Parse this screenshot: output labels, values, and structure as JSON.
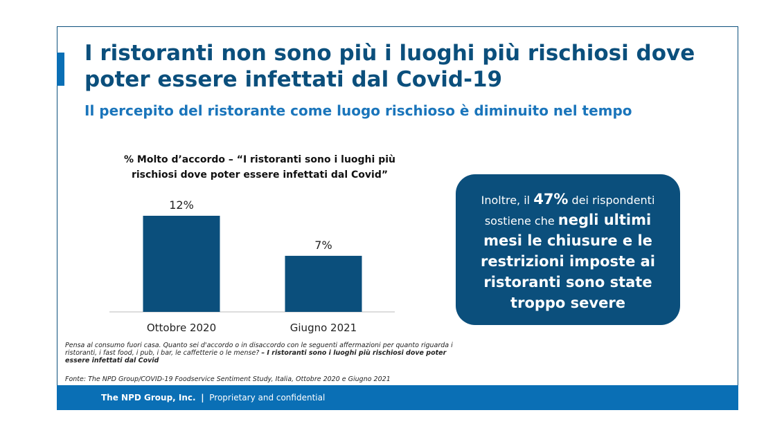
{
  "title": "I ristoranti non sono più i luoghi più rischiosi dove poter essere infettati dal Covid-19",
  "subtitle": "Il percepito del ristorante come luogo rischioso è diminuito nel tempo",
  "chart_data": {
    "type": "bar",
    "title": "% Molto d’accordo – “I ristoranti sono i luoghi più rischiosi dove poter essere infettati dal Covid”",
    "categories": [
      "Ottobre 2020",
      "Giugno 2021"
    ],
    "values": [
      12,
      7
    ],
    "labels": [
      "12%",
      "7%"
    ],
    "ylim": [
      0,
      12
    ],
    "color": "#0b4f7c"
  },
  "callout": {
    "p1": "Inoltre, il ",
    "pct": "47%",
    "p2": " dei rispondenti sostiene che ",
    "bold": "negli ultimi mesi le chiusure e le restrizioni imposte ai ristoranti sono state troppo severe"
  },
  "note": {
    "question": "Pensa al consumo fuori casa. Quanto sei d'accordo o in disaccordo con le seguenti affermazioni per quanto riguarda i ristoranti, i fast food, i pub, i bar, le caffetterie o le mense? ",
    "statement": "– I ristoranti sono i luoghi più rischiosi dove poter essere infettati dal Covid"
  },
  "source": "Fonte: The NPD Group/COVID-19 Foodservice Sentiment Study, Italia, Ottobre 2020 e Giugno 2021",
  "footer": {
    "company": "The NPD Group, Inc.",
    "sep": "|",
    "text": "Proprietary and confidential"
  }
}
